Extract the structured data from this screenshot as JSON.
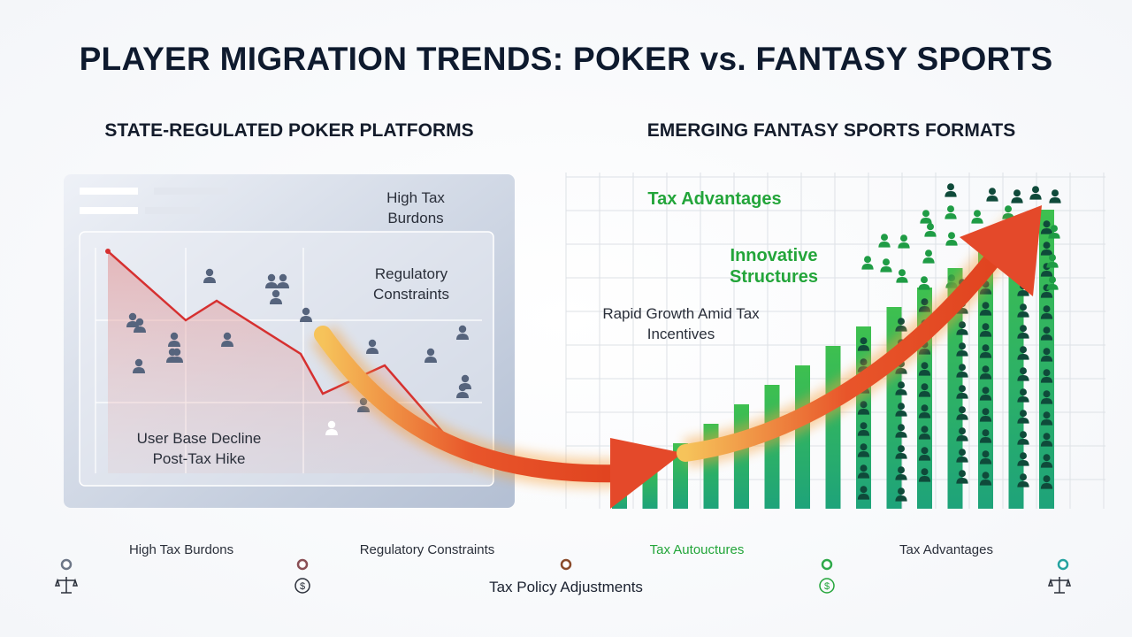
{
  "header": {
    "title": "PLAYER MIGRATION TRENDS: POKER vs. FANTASY SPORTS"
  },
  "left_panel": {
    "heading": "STATE-REGULATED POKER PLATFORMS",
    "labels": [
      "High Tax Burdons",
      "Regulatory Constraints",
      "User Base Decline Post-Tax Hike"
    ]
  },
  "right_panel": {
    "heading": "EMERGING FANTASY SPORTS FORMATS",
    "labels": [
      "Tax Advantages",
      "Innovative Structures",
      "Rapid Growth Amid Tax Incentives"
    ]
  },
  "timeline": {
    "stages": [
      "High Tax Burdons",
      "Regulatory Constraints",
      "Tax Autouctures",
      "Tax Advantages"
    ],
    "caption": "Tax Policy Adjustments"
  }
}
